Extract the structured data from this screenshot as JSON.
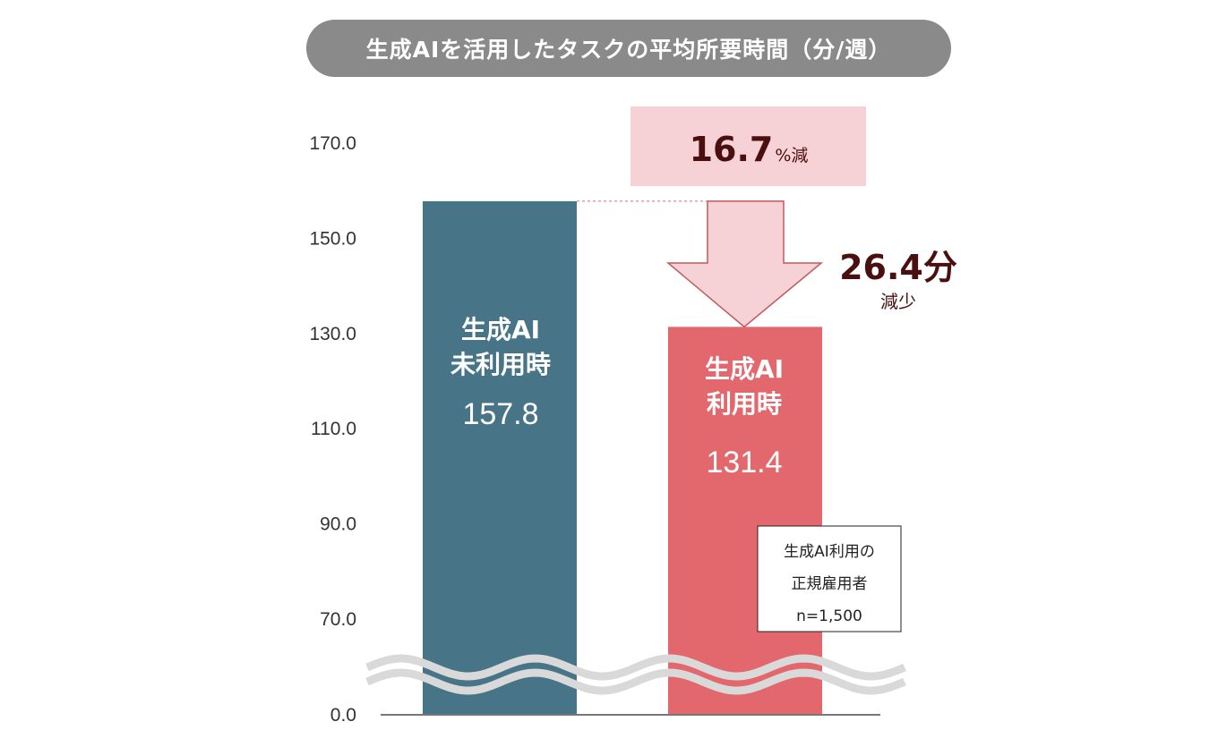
{
  "chart_data": {
    "type": "bar",
    "title": "生成AIを活用したタスクの平均所要時間（分/週）",
    "categories": [
      "生成AI未利用時",
      "生成AI利用時"
    ],
    "values": [
      157.8,
      131.4
    ],
    "value_labels": [
      "157.8",
      "131.4"
    ],
    "bar_labels": [
      [
        "生成AI",
        "未利用時"
      ],
      [
        "生成AI",
        "利用時"
      ]
    ],
    "colors": [
      "#477587",
      "#e3686d"
    ],
    "yticks": [
      "170.0",
      "150.0",
      "130.0",
      "110.0",
      "90.0",
      "70.0",
      "0.0"
    ],
    "ylim": [
      0,
      170
    ],
    "axis_break": true,
    "annotations": {
      "percent_value": "16.7",
      "percent_unit": "%減",
      "diff_value": "26.4分",
      "diff_label": "減少"
    },
    "note": [
      "生成AI利用の",
      "正規雇用者",
      "n=1,500"
    ]
  }
}
